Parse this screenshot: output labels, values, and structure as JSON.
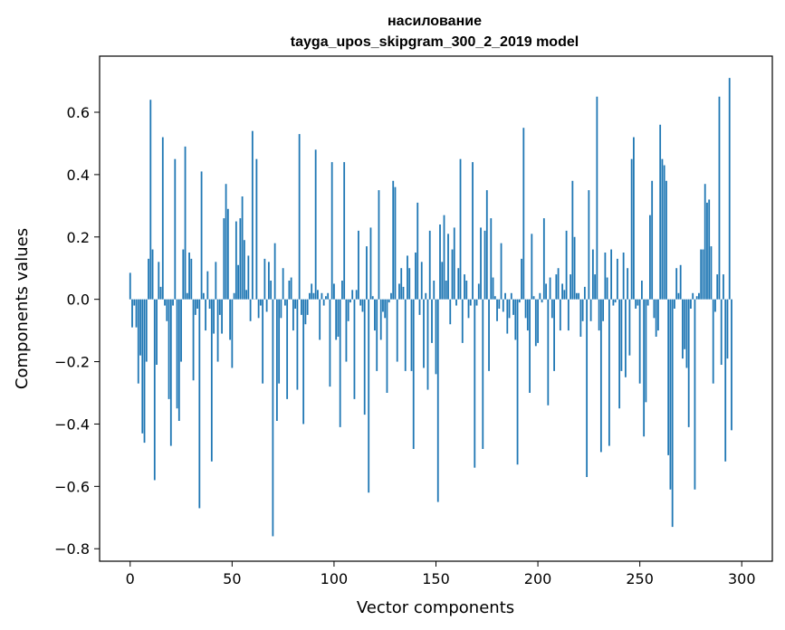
{
  "chart_data": {
    "type": "bar",
    "title": "насилование",
    "subtitle": "tayga_upos_skipgram_300_2_2019 model",
    "xlabel": "Vector components",
    "ylabel": "Components values",
    "xlim": [
      -15,
      315
    ],
    "ylim": [
      -0.84,
      0.78
    ],
    "xticks": [
      0,
      50,
      100,
      150,
      200,
      250,
      300
    ],
    "yticks": [
      -0.8,
      -0.6,
      -0.4,
      -0.2,
      0.0,
      0.2,
      0.4,
      0.6
    ],
    "ytick_labels": [
      "−0.8",
      "−0.6",
      "−0.4",
      "−0.2",
      "0.0",
      "0.2",
      "0.4",
      "0.6"
    ],
    "bar_color": "#1f77b4",
    "grid": false,
    "legend": "none",
    "values": [
      0.085,
      -0.09,
      -0.02,
      -0.09,
      -0.27,
      -0.18,
      -0.43,
      -0.46,
      -0.2,
      0.13,
      0.64,
      0.16,
      -0.58,
      -0.21,
      0.12,
      0.04,
      0.52,
      -0.02,
      -0.07,
      -0.32,
      -0.47,
      -0.02,
      0.45,
      -0.35,
      -0.39,
      -0.2,
      0.16,
      0.49,
      0.02,
      0.15,
      0.13,
      -0.26,
      -0.05,
      -0.03,
      -0.67,
      0.41,
      0.02,
      -0.1,
      0.09,
      -0.03,
      -0.52,
      -0.11,
      0.12,
      -0.2,
      -0.05,
      -0.11,
      0.26,
      0.37,
      0.29,
      -0.13,
      -0.22,
      0.02,
      0.25,
      0.11,
      0.26,
      0.33,
      0.19,
      0.03,
      0.14,
      -0.07,
      0.54,
      0.0,
      0.45,
      -0.06,
      -0.02,
      -0.27,
      0.13,
      -0.04,
      0.12,
      0.06,
      -0.76,
      0.18,
      -0.39,
      -0.27,
      -0.06,
      0.1,
      -0.02,
      -0.32,
      0.06,
      0.07,
      -0.1,
      -0.03,
      -0.29,
      0.53,
      -0.05,
      -0.4,
      -0.08,
      -0.05,
      0.02,
      0.05,
      0.02,
      0.48,
      0.03,
      -0.13,
      0.02,
      -0.02,
      0.01,
      0.02,
      -0.28,
      0.44,
      0.05,
      -0.13,
      -0.12,
      -0.41,
      0.06,
      0.44,
      -0.2,
      -0.07,
      -0.01,
      0.03,
      -0.32,
      0.03,
      0.22,
      -0.02,
      -0.04,
      -0.37,
      0.17,
      -0.62,
      0.23,
      0.01,
      -0.1,
      -0.23,
      0.35,
      -0.13,
      -0.04,
      -0.06,
      -0.3,
      -0.01,
      0.02,
      0.38,
      0.36,
      -0.2,
      0.05,
      0.1,
      0.04,
      -0.23,
      0.14,
      0.1,
      -0.23,
      -0.48,
      0.15,
      0.31,
      -0.05,
      0.12,
      -0.22,
      0.02,
      -0.29,
      0.22,
      -0.14,
      0.06,
      -0.24,
      -0.65,
      0.24,
      0.12,
      0.27,
      0.06,
      0.21,
      -0.08,
      0.16,
      0.23,
      -0.02,
      0.1,
      0.45,
      -0.14,
      0.08,
      0.06,
      -0.06,
      -0.02,
      0.44,
      -0.54,
      -0.02,
      0.05,
      0.23,
      -0.48,
      0.22,
      0.35,
      -0.23,
      0.26,
      0.07,
      0.01,
      -0.07,
      -0.03,
      0.18,
      -0.04,
      0.02,
      -0.11,
      -0.06,
      0.02,
      -0.05,
      -0.13,
      -0.53,
      -0.01,
      0.13,
      0.55,
      -0.06,
      -0.1,
      -0.3,
      0.21,
      0.01,
      -0.15,
      -0.14,
      0.02,
      -0.01,
      0.26,
      0.05,
      -0.34,
      0.07,
      -0.06,
      -0.23,
      0.08,
      0.1,
      -0.1,
      0.05,
      0.03,
      0.22,
      -0.1,
      0.08,
      0.38,
      0.2,
      0.02,
      0.02,
      -0.12,
      -0.07,
      0.04,
      -0.57,
      0.35,
      -0.07,
      0.16,
      0.08,
      0.65,
      -0.1,
      -0.49,
      -0.07,
      0.15,
      0.07,
      -0.47,
      0.16,
      -0.02,
      -0.01,
      0.13,
      -0.35,
      -0.23,
      0.15,
      -0.25,
      0.1,
      -0.18,
      0.45,
      0.52,
      -0.03,
      -0.02,
      -0.27,
      0.06,
      -0.44,
      -0.33,
      -0.02,
      0.27,
      0.38,
      -0.06,
      -0.12,
      -0.1,
      0.56,
      0.45,
      0.43,
      0.38,
      -0.5,
      -0.61,
      -0.73,
      -0.03,
      0.1,
      0.02,
      0.11,
      -0.19,
      -0.16,
      -0.22,
      -0.41,
      -0.03,
      0.02,
      -0.61,
      0.01,
      0.02,
      0.16,
      0.16,
      0.37,
      0.31,
      0.32,
      0.17,
      -0.27,
      -0.04,
      0.08,
      0.65,
      -0.21,
      0.08,
      -0.52,
      -0.19,
      0.71,
      -0.42
    ]
  }
}
